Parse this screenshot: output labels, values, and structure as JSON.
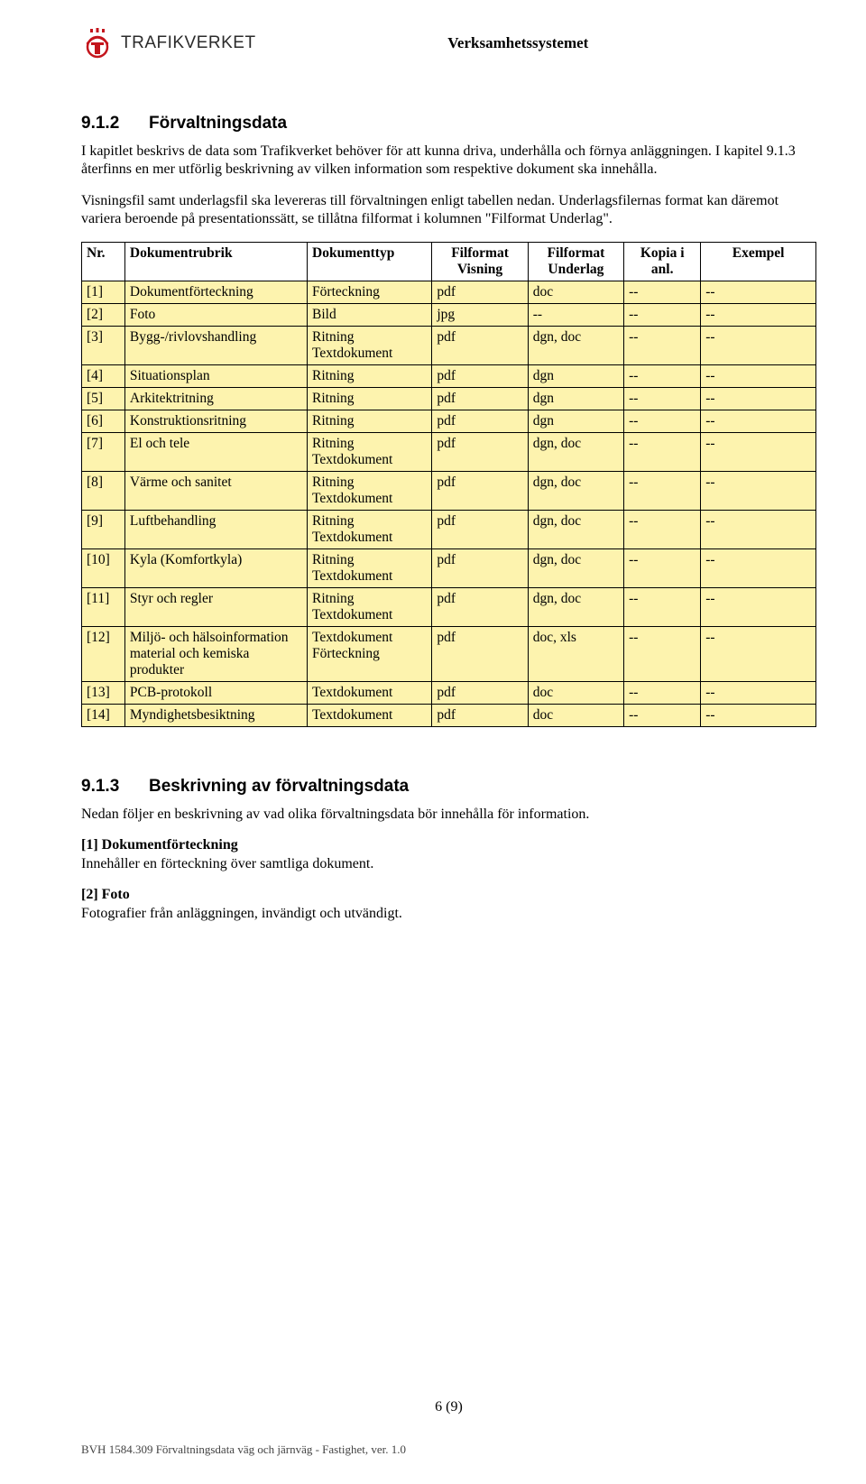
{
  "header": {
    "logo_text": "TRAFIKVERKET",
    "system_title": "Verksamhetssystemet"
  },
  "section1": {
    "num": "9.1.2",
    "title": "Förvaltningsdata",
    "para1": "I kapitlet beskrivs de data som Trafikverket behöver för att kunna driva, underhålla och förnya anläggningen. I kapitel 9.1.3 återfinns en mer utförlig beskrivning av vilken information som respektive dokument ska innehålla.",
    "para2": "Visningsfil samt underlagsfil ska levereras till förvaltningen enligt tabellen nedan. Underlagsfilernas format kan däremot variera beroende på presentationssätt, se tillåtna filformat i kolumnen \"Filformat Underlag\"."
  },
  "table": {
    "row_bg": "#fdf3ae",
    "columns": [
      "Nr.",
      "Dokumentrubrik",
      "Dokumenttyp",
      "Filformat Visning",
      "Filformat Underlag",
      "Kopia i anl.",
      "Exempel"
    ],
    "rows": [
      [
        "[1]",
        "Dokumentförteckning",
        "Förteckning",
        "pdf",
        "doc",
        "--",
        "--"
      ],
      [
        "[2]",
        "Foto",
        "Bild",
        "jpg",
        "--",
        "--",
        "--"
      ],
      [
        "[3]",
        "Bygg-/rivlovshandling",
        "Ritning\nTextdokument",
        "pdf",
        "dgn, doc",
        "--",
        "--"
      ],
      [
        "[4]",
        "Situationsplan",
        "Ritning",
        "pdf",
        "dgn",
        "--",
        "--"
      ],
      [
        "[5]",
        "Arkitektritning",
        "Ritning",
        "pdf",
        "dgn",
        "--",
        "--"
      ],
      [
        "[6]",
        "Konstruktionsritning",
        "Ritning",
        "pdf",
        "dgn",
        "--",
        "--"
      ],
      [
        "[7]",
        "El och tele",
        "Ritning\nTextdokument",
        "pdf",
        "dgn, doc",
        "--",
        "--"
      ],
      [
        "[8]",
        "Värme och sanitet",
        "Ritning\nTextdokument",
        "pdf",
        "dgn, doc",
        "--",
        "--"
      ],
      [
        "[9]",
        "Luftbehandling",
        "Ritning\nTextdokument",
        "pdf",
        "dgn, doc",
        "--",
        "--"
      ],
      [
        "[10]",
        "Kyla (Komfortkyla)",
        "Ritning\nTextdokument",
        "pdf",
        "dgn, doc",
        "--",
        "--"
      ],
      [
        "[11]",
        "Styr och regler",
        "Ritning\nTextdokument",
        "pdf",
        "dgn, doc",
        "--",
        "--"
      ],
      [
        "[12]",
        "Miljö- och hälsoinformation material och kemiska produkter",
        "Textdokument\nFörteckning",
        "pdf",
        "doc, xls",
        "--",
        "--"
      ],
      [
        "[13]",
        "PCB-protokoll",
        "Textdokument",
        "pdf",
        "doc",
        "--",
        "--"
      ],
      [
        "[14]",
        "Myndighetsbesiktning",
        "Textdokument",
        "pdf",
        "doc",
        "--",
        "--"
      ]
    ]
  },
  "section2": {
    "num": "9.1.3",
    "title": "Beskrivning av förvaltningsdata",
    "para": "Nedan följer en beskrivning av vad olika förvaltningsdata bör innehålla för information."
  },
  "items": [
    {
      "head": "[1] Dokumentförteckning",
      "body": "Innehåller en förteckning över samtliga dokument."
    },
    {
      "head": "[2] Foto",
      "body": "Fotografier från anläggningen, invändigt och utvändigt."
    }
  ],
  "footer": {
    "page": "6 (9)",
    "line": "BVH 1584.309 Förvaltningsdata väg och järnväg - Fastighet, ver. 1.0"
  }
}
